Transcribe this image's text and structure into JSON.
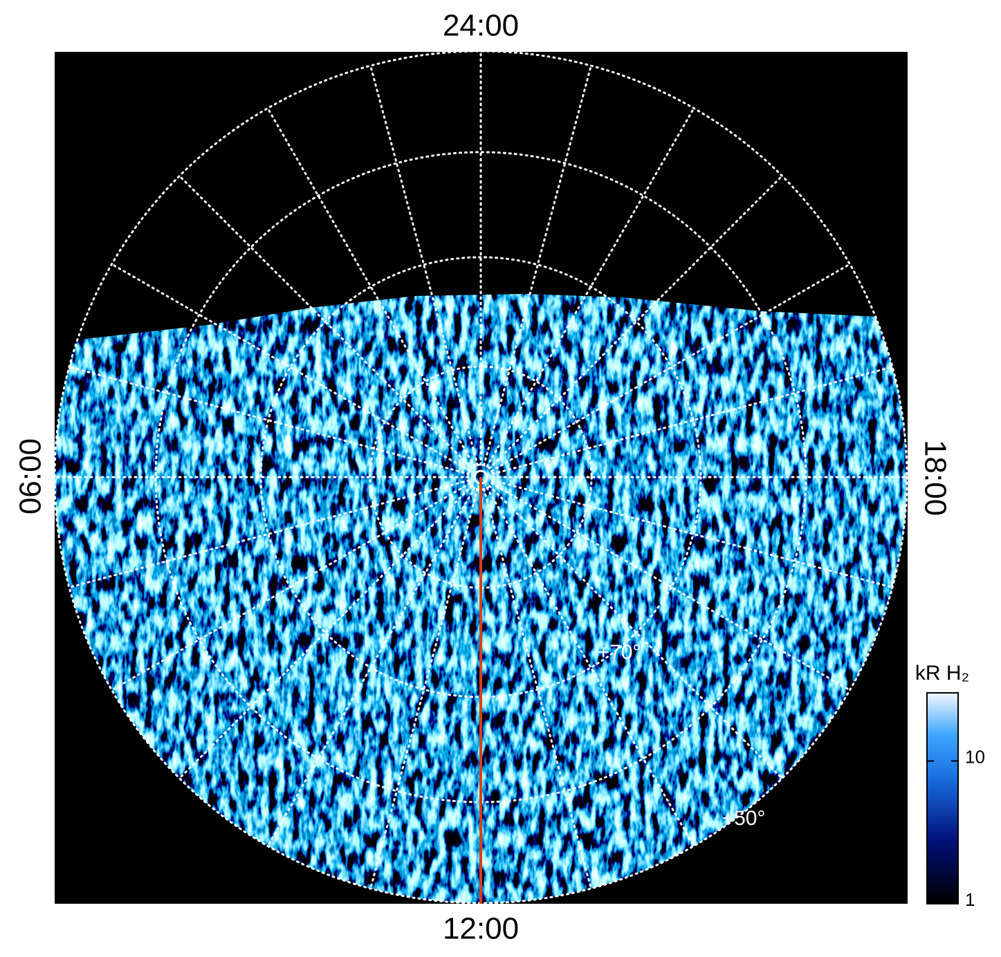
{
  "chart_data": {
    "type": "polar-image",
    "local_time_labels": {
      "top": "24:00",
      "left": "06:00",
      "right": "18:00",
      "bottom": "12:00"
    },
    "latitude_labels": [
      "+70°",
      "+50°"
    ],
    "colorbar": {
      "label": "kR H₂",
      "lim": [
        1,
        30
      ],
      "ticks": [
        1,
        10
      ],
      "log": true
    }
  }
}
